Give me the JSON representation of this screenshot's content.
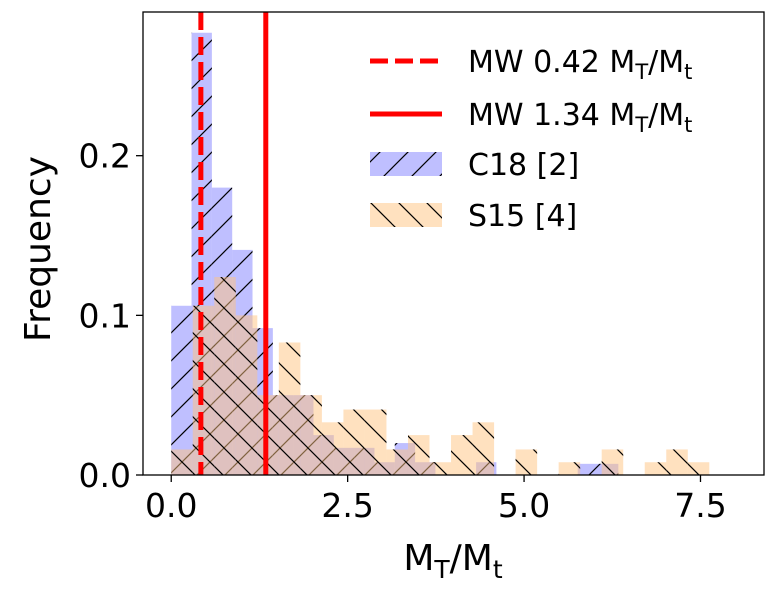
{
  "chart_data": {
    "type": "histogram",
    "xlabel": "M_T/M_t",
    "ylabel": "Frequency",
    "xlim": [
      -0.4,
      8.4
    ],
    "ylim": [
      0,
      0.29
    ],
    "xticks": [
      0.0,
      2.5,
      5.0,
      7.5
    ],
    "xtick_labels": [
      "0.0",
      "2.5",
      "5.0",
      "7.5"
    ],
    "yticks": [
      0.0,
      0.1,
      0.2
    ],
    "ytick_labels": [
      "0.0",
      "0.1",
      "0.2"
    ],
    "legend_position": "upper right",
    "colors": {
      "c18": "#8080ff",
      "s15": "#ffc37f",
      "overlap": "#c0817f",
      "mw_line": "#ff0000"
    },
    "vlines": [
      {
        "name": "MW 0.42 M_T/M_t",
        "label_main": "MW 0.42 M",
        "sub1": "T",
        "mid": "/M",
        "sub2": "t",
        "x": 0.42,
        "style": "dashed",
        "color": "#ff0000"
      },
      {
        "name": "MW 1.34 M_T/M_t",
        "label_main": "MW 1.34 M",
        "sub1": "T",
        "mid": "/M",
        "sub2": "t",
        "x": 1.34,
        "style": "solid",
        "color": "#ff0000"
      }
    ],
    "series": [
      {
        "name": "C18 [2]",
        "color": "#8080ff",
        "hatch": "/",
        "bin_edges": [
          0.0,
          0.288,
          0.576,
          0.864,
          1.152,
          1.44,
          1.728,
          2.016,
          2.304,
          2.592,
          2.88,
          3.168,
          3.456,
          3.744,
          4.032,
          4.32,
          4.608,
          4.896,
          5.184,
          5.472,
          5.76,
          6.048,
          6.336,
          6.624,
          6.912,
          7.2
        ],
        "values": [
          0.106,
          0.277,
          0.18,
          0.141,
          0.092,
          0.05,
          0.05,
          0.025,
          0.017,
          0.017,
          0.008,
          0.02,
          0.008,
          0.0,
          0.0,
          0.008,
          0.0,
          0.0,
          0.0,
          0.0,
          0.007,
          0.007,
          0.0,
          0.0,
          0.0
        ]
      },
      {
        "name": "S15 [4]",
        "color": "#ffc37f",
        "hatch": "\\",
        "bin_edges": [
          0.0,
          0.305,
          0.61,
          0.915,
          1.22,
          1.525,
          1.83,
          2.135,
          2.44,
          2.745,
          3.05,
          3.355,
          3.66,
          3.965,
          4.27,
          4.575,
          4.88,
          5.185,
          5.49,
          5.795,
          6.1,
          6.405,
          6.71,
          7.015,
          7.32,
          7.625
        ],
        "values": [
          0.016,
          0.106,
          0.124,
          0.1,
          0.05,
          0.083,
          0.05,
          0.033,
          0.041,
          0.041,
          0.016,
          0.025,
          0.008,
          0.025,
          0.033,
          0.0,
          0.016,
          0.0,
          0.008,
          0.0,
          0.016,
          0.0,
          0.008,
          0.016,
          0.008
        ]
      }
    ]
  }
}
